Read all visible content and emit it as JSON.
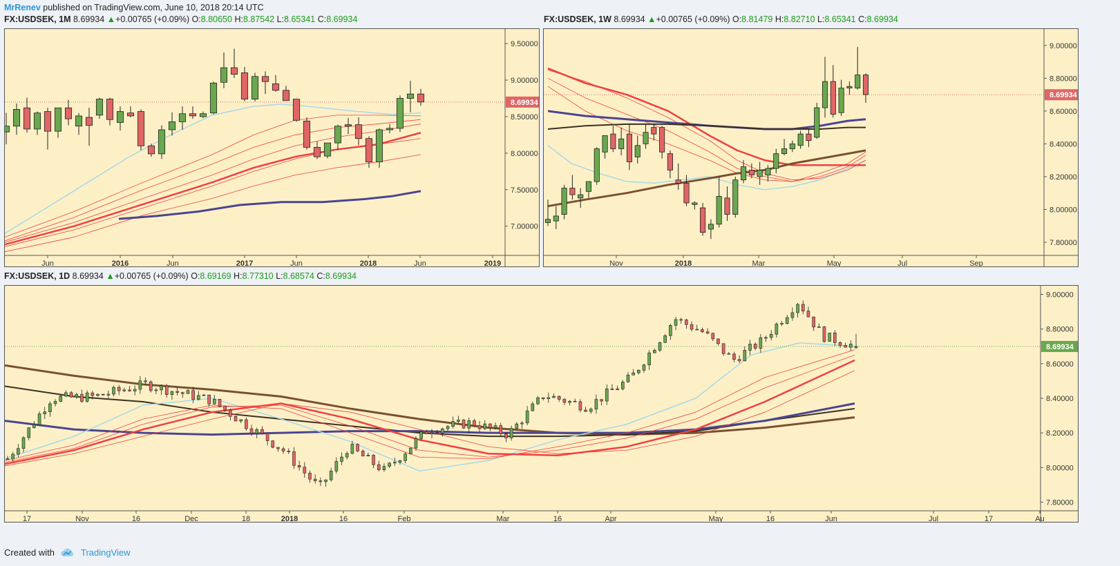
{
  "header": {
    "author": "MrRenev",
    "published": "published on TradingView.com, June 10, 2018 20:14 UTC"
  },
  "footer": {
    "created_with": "Created with",
    "brand": "TradingView"
  },
  "colors": {
    "background": "#fdf0c7",
    "up_candle": "#6aa84f",
    "down_candle": "#e06666",
    "price_label_red": "#e06666",
    "price_label_green": "#6aa84f",
    "ma_light_blue": "#a8d8e8",
    "ma_red": "#f04040",
    "ma_navy": "#4a4590",
    "ma_brown": "#7a5030",
    "ma_dark": "#3a3020"
  },
  "panels": {
    "monthly": {
      "symbol": "FX:USDSEK, 1M",
      "last": "8.69934",
      "arrow": "▲",
      "change": "+0.00765 (+0.09%)",
      "O": "8.80650",
      "H": "8.87542",
      "L": "8.65341",
      "C": "8.69934",
      "price_label": "8.69934"
    },
    "weekly": {
      "symbol": "FX:USDSEK, 1W",
      "last": "8.69934",
      "arrow": "▲",
      "change": "+0.00765 (+0.09%)",
      "O": "8.81479",
      "H": "8.82710",
      "L": "8.65341",
      "C": "8.69934",
      "price_label": "8.69934"
    },
    "daily": {
      "symbol": "FX:USDSEK, 1D",
      "last": "8.69934",
      "arrow": "▲",
      "change": "+0.00765 (+0.09%)",
      "O": "8.69169",
      "H": "8.77310",
      "L": "8.68574",
      "C": "8.69934",
      "price_label": "8.69934"
    }
  },
  "chart_data": [
    {
      "type": "candlestick",
      "title": "FX:USDSEK, 1M",
      "ylim": [
        6.6,
        9.7
      ],
      "y_ticks": [
        "9.50000",
        "9.00000",
        "8.50000",
        "8.00000",
        "7.50000",
        "7.00000"
      ],
      "x_ticks": [
        "Jun",
        "2016",
        "Jun",
        "2017",
        "Jun",
        "2018",
        "Jun",
        "2019"
      ],
      "last_price_line": 8.69934,
      "candles": [
        {
          "o": 8.29,
          "h": 8.55,
          "l": 8.12,
          "c": 8.37
        },
        {
          "o": 8.37,
          "h": 8.68,
          "l": 8.25,
          "c": 8.6
        },
        {
          "o": 8.62,
          "h": 8.76,
          "l": 8.28,
          "c": 8.33
        },
        {
          "o": 8.33,
          "h": 8.57,
          "l": 8.25,
          "c": 8.55
        },
        {
          "o": 8.57,
          "h": 8.62,
          "l": 8.05,
          "c": 8.3
        },
        {
          "o": 8.3,
          "h": 8.62,
          "l": 8.21,
          "c": 8.62
        },
        {
          "o": 8.62,
          "h": 8.73,
          "l": 8.38,
          "c": 8.47
        },
        {
          "o": 8.37,
          "h": 8.55,
          "l": 8.25,
          "c": 8.51
        },
        {
          "o": 8.49,
          "h": 8.62,
          "l": 8.1,
          "c": 8.38
        },
        {
          "o": 8.52,
          "h": 8.76,
          "l": 8.47,
          "c": 8.74
        },
        {
          "o": 8.74,
          "h": 8.76,
          "l": 8.38,
          "c": 8.46
        },
        {
          "o": 8.42,
          "h": 8.64,
          "l": 8.31,
          "c": 8.57
        },
        {
          "o": 8.55,
          "h": 8.64,
          "l": 8.49,
          "c": 8.51
        },
        {
          "o": 8.57,
          "h": 8.6,
          "l": 8.04,
          "c": 8.1
        },
        {
          "o": 8.1,
          "h": 8.13,
          "l": 7.95,
          "c": 7.99
        },
        {
          "o": 7.99,
          "h": 8.38,
          "l": 7.92,
          "c": 8.32
        },
        {
          "o": 8.32,
          "h": 8.56,
          "l": 8.24,
          "c": 8.43
        },
        {
          "o": 8.43,
          "h": 8.64,
          "l": 8.32,
          "c": 8.54
        },
        {
          "o": 8.54,
          "h": 8.64,
          "l": 8.47,
          "c": 8.51
        },
        {
          "o": 8.5,
          "h": 8.57,
          "l": 8.48,
          "c": 8.54
        },
        {
          "o": 8.55,
          "h": 8.98,
          "l": 8.53,
          "c": 8.96
        },
        {
          "o": 8.97,
          "h": 9.38,
          "l": 8.89,
          "c": 9.17
        },
        {
          "o": 9.17,
          "h": 9.43,
          "l": 9.03,
          "c": 9.08
        },
        {
          "o": 9.1,
          "h": 9.18,
          "l": 8.71,
          "c": 8.74
        },
        {
          "o": 8.74,
          "h": 9.1,
          "l": 8.71,
          "c": 9.05
        },
        {
          "o": 9.05,
          "h": 9.12,
          "l": 8.81,
          "c": 8.98
        },
        {
          "o": 8.95,
          "h": 9.07,
          "l": 8.84,
          "c": 8.86
        },
        {
          "o": 8.86,
          "h": 8.92,
          "l": 8.75,
          "c": 8.72
        },
        {
          "o": 8.74,
          "h": 8.74,
          "l": 8.43,
          "c": 8.45
        },
        {
          "o": 8.44,
          "h": 8.49,
          "l": 8.05,
          "c": 8.08
        },
        {
          "o": 8.08,
          "h": 8.16,
          "l": 7.92,
          "c": 7.95
        },
        {
          "o": 7.96,
          "h": 8.14,
          "l": 7.93,
          "c": 8.14
        },
        {
          "o": 8.14,
          "h": 8.39,
          "l": 8.05,
          "c": 8.37
        },
        {
          "o": 8.37,
          "h": 8.48,
          "l": 8.26,
          "c": 8.39
        },
        {
          "o": 8.39,
          "h": 8.49,
          "l": 8.11,
          "c": 8.2
        },
        {
          "o": 8.2,
          "h": 8.23,
          "l": 7.8,
          "c": 7.88
        },
        {
          "o": 7.88,
          "h": 8.34,
          "l": 7.8,
          "c": 8.32
        },
        {
          "o": 8.32,
          "h": 8.4,
          "l": 8.27,
          "c": 8.34
        },
        {
          "o": 8.34,
          "h": 8.79,
          "l": 8.29,
          "c": 8.75
        },
        {
          "o": 8.75,
          "h": 8.99,
          "l": 8.56,
          "c": 8.81
        },
        {
          "o": 8.81,
          "h": 8.88,
          "l": 8.65,
          "c": 8.7
        }
      ]
    },
    {
      "type": "candlestick",
      "title": "FX:USDSEK, 1W",
      "ylim": [
        7.72,
        9.1
      ],
      "y_ticks": [
        "9.00000",
        "8.80000",
        "8.60000",
        "8.40000",
        "8.20000",
        "8.00000",
        "7.80000"
      ],
      "x_ticks": [
        "Nov",
        "2018",
        "Mar",
        "May",
        "Jul",
        "Sep"
      ],
      "last_price_line": 8.69934,
      "candles": [
        {
          "o": 7.92,
          "h": 8.06,
          "l": 7.9,
          "c": 7.94
        },
        {
          "o": 7.93,
          "h": 8.02,
          "l": 7.88,
          "c": 7.96
        },
        {
          "o": 7.97,
          "h": 8.15,
          "l": 7.94,
          "c": 8.13
        },
        {
          "o": 8.13,
          "h": 8.21,
          "l": 8.06,
          "c": 8.09
        },
        {
          "o": 8.07,
          "h": 8.13,
          "l": 8.01,
          "c": 8.09
        },
        {
          "o": 8.11,
          "h": 8.17,
          "l": 8.07,
          "c": 8.17
        },
        {
          "o": 8.17,
          "h": 8.38,
          "l": 8.15,
          "c": 8.37
        },
        {
          "o": 8.35,
          "h": 8.45,
          "l": 8.31,
          "c": 8.45
        },
        {
          "o": 8.46,
          "h": 8.51,
          "l": 8.35,
          "c": 8.37
        },
        {
          "o": 8.37,
          "h": 8.5,
          "l": 8.33,
          "c": 8.43
        },
        {
          "o": 8.46,
          "h": 8.52,
          "l": 8.24,
          "c": 8.29
        },
        {
          "o": 8.32,
          "h": 8.45,
          "l": 8.28,
          "c": 8.39
        },
        {
          "o": 8.4,
          "h": 8.52,
          "l": 8.37,
          "c": 8.47
        },
        {
          "o": 8.5,
          "h": 8.52,
          "l": 8.42,
          "c": 8.46
        },
        {
          "o": 8.5,
          "h": 8.51,
          "l": 8.31,
          "c": 8.35
        },
        {
          "o": 8.34,
          "h": 8.36,
          "l": 8.19,
          "c": 8.24
        },
        {
          "o": 8.18,
          "h": 8.28,
          "l": 8.12,
          "c": 8.16
        },
        {
          "o": 8.16,
          "h": 8.21,
          "l": 8.02,
          "c": 8.04
        },
        {
          "o": 8.03,
          "h": 8.05,
          "l": 8.0,
          "c": 8.04
        },
        {
          "o": 8.01,
          "h": 8.04,
          "l": 7.84,
          "c": 7.86
        },
        {
          "o": 7.88,
          "h": 7.94,
          "l": 7.82,
          "c": 7.91
        },
        {
          "o": 7.91,
          "h": 8.2,
          "l": 7.89,
          "c": 8.08
        },
        {
          "o": 8.07,
          "h": 8.14,
          "l": 7.93,
          "c": 7.97
        },
        {
          "o": 7.97,
          "h": 8.2,
          "l": 7.95,
          "c": 8.18
        },
        {
          "o": 8.18,
          "h": 8.3,
          "l": 8.16,
          "c": 8.26
        },
        {
          "o": 8.24,
          "h": 8.28,
          "l": 8.19,
          "c": 8.21
        },
        {
          "o": 8.2,
          "h": 8.29,
          "l": 8.15,
          "c": 8.24
        },
        {
          "o": 8.21,
          "h": 8.27,
          "l": 8.17,
          "c": 8.25
        },
        {
          "o": 8.25,
          "h": 8.37,
          "l": 8.22,
          "c": 8.34
        },
        {
          "o": 8.34,
          "h": 8.43,
          "l": 8.33,
          "c": 8.37
        },
        {
          "o": 8.37,
          "h": 8.42,
          "l": 8.35,
          "c": 8.4
        },
        {
          "o": 8.39,
          "h": 8.48,
          "l": 8.37,
          "c": 8.46
        },
        {
          "o": 8.46,
          "h": 8.49,
          "l": 8.38,
          "c": 8.42
        },
        {
          "o": 8.44,
          "h": 8.65,
          "l": 8.43,
          "c": 8.62
        },
        {
          "o": 8.62,
          "h": 8.93,
          "l": 8.56,
          "c": 8.78
        },
        {
          "o": 8.78,
          "h": 8.88,
          "l": 8.56,
          "c": 8.58
        },
        {
          "o": 8.59,
          "h": 8.79,
          "l": 8.57,
          "c": 8.74
        },
        {
          "o": 8.74,
          "h": 8.78,
          "l": 8.7,
          "c": 8.75
        },
        {
          "o": 8.74,
          "h": 8.99,
          "l": 8.73,
          "c": 8.82
        },
        {
          "o": 8.82,
          "h": 8.83,
          "l": 8.65,
          "c": 8.7
        }
      ]
    },
    {
      "type": "candlestick",
      "title": "FX:USDSEK, 1D",
      "ylim": [
        7.75,
        9.05
      ],
      "y_ticks": [
        "9.00000",
        "8.80000",
        "8.60000",
        "8.40000",
        "8.20000",
        "8.00000",
        "7.80000"
      ],
      "x_ticks": [
        "17",
        "Nov",
        "16",
        "Dec",
        "18",
        "2018",
        "16",
        "Feb",
        "Mar",
        "16",
        "Apr",
        "May",
        "16",
        "Jun",
        "Jul",
        "17",
        "Au"
      ],
      "last_price_line": 8.69934
    }
  ]
}
